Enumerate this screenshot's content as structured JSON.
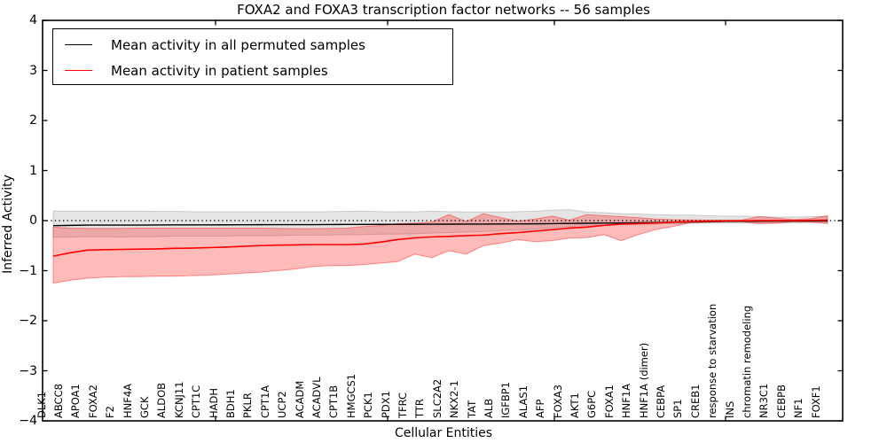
{
  "title": "FOXA2 and FOXA3 transcription factor networks -- 56 samples",
  "axes": {
    "xlabel": "Cellular Entities",
    "ylabel": "Inferred Activity"
  },
  "legend": {
    "items": [
      {
        "label": "Mean activity in all permuted samples",
        "color": "#000000"
      },
      {
        "label": "Mean activity in patient samples",
        "color": "#ff0000"
      }
    ]
  },
  "chart_data": {
    "type": "line",
    "title": "FOXA2 and FOXA3 transcription factor networks -- 56 samples",
    "xlabel": "Cellular Entities",
    "ylabel": "Inferred Activity",
    "ylim": [
      -4,
      4
    ],
    "yticks": [
      4,
      3,
      2,
      1,
      0,
      -1,
      -2,
      -3,
      -4
    ],
    "ytick_labels": [
      "4",
      "3",
      "2",
      "1",
      "0",
      "−1",
      "−2",
      "−3",
      "−4"
    ],
    "grid": false,
    "legend_position": "upper left",
    "zero_line": {
      "value": 0,
      "style": "dotted",
      "color": "#000000"
    },
    "categories": [
      "DLK1",
      "ABCC8",
      "APOA1",
      "FOXA2",
      "F2",
      "HNF4A",
      "GCK",
      "ALDOB",
      "KCNJ11",
      "CPT1C",
      "HADH",
      "BDH1",
      "PKLR",
      "CPT1A",
      "UCP2",
      "ACADM",
      "ACADVL",
      "CPT1B",
      "HMGCS1",
      "PCK1",
      "PDX1",
      "TFRC",
      "TTR",
      "SLC2A2",
      "NKX2-1",
      "TAT",
      "ALB",
      "IGFBP1",
      "ALAS1",
      "AFP",
      "FOXA3",
      "AKT1",
      "G6PC",
      "FOXA1",
      "HNF1A",
      "HNF1A (dimer)",
      "CEBPA",
      "SP1",
      "CREB1",
      "response to starvation",
      "INS",
      "chromatin remodeling",
      "NR3C1",
      "CEBPB",
      "NF1",
      "FOXF1"
    ],
    "series": [
      {
        "name": "Mean activity in all permuted samples",
        "color": "#000000",
        "values": [
          -0.1,
          -0.095,
          -0.09,
          -0.09,
          -0.09,
          -0.09,
          -0.088,
          -0.086,
          -0.085,
          -0.085,
          -0.084,
          -0.083,
          -0.082,
          -0.081,
          -0.08,
          -0.08,
          -0.078,
          -0.077,
          -0.076,
          -0.075,
          -0.074,
          -0.073,
          -0.072,
          -0.071,
          -0.07,
          -0.069,
          -0.068,
          -0.066,
          -0.064,
          -0.06,
          -0.056,
          -0.053,
          -0.05,
          -0.047,
          -0.044,
          -0.04,
          -0.033,
          -0.027,
          -0.022,
          -0.017,
          -0.014,
          -0.012,
          -0.01,
          -0.009,
          -0.008,
          -0.007
        ],
        "band": {
          "fill": "rgba(0,0,0,0.10)",
          "edge": "rgba(0,0,0,0.16)",
          "upper": [
            0.19,
            0.19,
            0.19,
            0.19,
            0.19,
            0.19,
            0.185,
            0.185,
            0.18,
            0.18,
            0.18,
            0.18,
            0.18,
            0.18,
            0.18,
            0.18,
            0.18,
            0.185,
            0.19,
            0.18,
            0.18,
            0.175,
            0.19,
            0.18,
            0.175,
            0.175,
            0.17,
            0.18,
            0.19,
            0.21,
            0.22,
            0.17,
            0.16,
            0.14,
            0.13,
            0.12,
            0.11,
            0.11,
            0.1,
            0.09,
            0.09,
            0.08,
            0.07,
            0.07,
            0.08,
            0.08
          ],
          "lower": [
            -0.33,
            -0.33,
            -0.32,
            -0.32,
            -0.33,
            -0.32,
            -0.32,
            -0.31,
            -0.31,
            -0.31,
            -0.31,
            -0.3,
            -0.3,
            -0.3,
            -0.29,
            -0.29,
            -0.29,
            -0.28,
            -0.28,
            -0.27,
            -0.27,
            -0.26,
            -0.25,
            -0.24,
            -0.23,
            -0.22,
            -0.2,
            -0.19,
            -0.17,
            -0.14,
            -0.12,
            -0.1,
            -0.09,
            -0.08,
            -0.07,
            -0.065,
            -0.06,
            -0.055,
            -0.05,
            -0.05,
            -0.05,
            -0.05,
            -0.05,
            -0.045,
            -0.04,
            -0.04
          ]
        }
      },
      {
        "name": "Mean activity in patient samples",
        "color": "#ff0000",
        "values": [
          -0.71,
          -0.64,
          -0.59,
          -0.58,
          -0.575,
          -0.57,
          -0.565,
          -0.555,
          -0.55,
          -0.54,
          -0.53,
          -0.515,
          -0.5,
          -0.49,
          -0.485,
          -0.48,
          -0.48,
          -0.48,
          -0.47,
          -0.43,
          -0.38,
          -0.345,
          -0.325,
          -0.315,
          -0.3,
          -0.29,
          -0.26,
          -0.24,
          -0.21,
          -0.18,
          -0.15,
          -0.13,
          -0.095,
          -0.07,
          -0.06,
          -0.05,
          -0.03,
          -0.02,
          -0.013,
          -0.008,
          -0.003,
          0.0,
          0.0,
          0.0,
          0.005,
          0.01
        ],
        "band": {
          "fill": "rgba(255,0,0,0.27)",
          "edge": "rgba(255,0,0,0.40)",
          "upper": [
            -0.13,
            -0.15,
            -0.155,
            -0.155,
            -0.155,
            -0.15,
            -0.15,
            -0.15,
            -0.15,
            -0.15,
            -0.15,
            -0.15,
            -0.15,
            -0.155,
            -0.16,
            -0.16,
            -0.155,
            -0.15,
            -0.12,
            -0.1,
            -0.06,
            -0.05,
            -0.03,
            0.12,
            -0.02,
            0.14,
            0.06,
            -0.01,
            0.03,
            0.09,
            0.01,
            0.12,
            0.1,
            0.08,
            0.06,
            0.03,
            0.02,
            0.015,
            0.01,
            0.01,
            0.01,
            0.08,
            0.05,
            0.02,
            0.04,
            0.1
          ],
          "lower": [
            -1.25,
            -1.19,
            -1.15,
            -1.13,
            -1.12,
            -1.12,
            -1.11,
            -1.11,
            -1.1,
            -1.09,
            -1.07,
            -1.05,
            -1.03,
            -1.0,
            -0.97,
            -0.92,
            -0.9,
            -0.9,
            -0.88,
            -0.85,
            -0.82,
            -0.67,
            -0.74,
            -0.6,
            -0.67,
            -0.5,
            -0.45,
            -0.38,
            -0.42,
            -0.4,
            -0.35,
            -0.34,
            -0.28,
            -0.4,
            -0.28,
            -0.18,
            -0.12,
            -0.04,
            -0.03,
            -0.02,
            -0.02,
            -0.06,
            -0.05,
            -0.02,
            -0.03,
            -0.06
          ]
        }
      }
    ]
  }
}
